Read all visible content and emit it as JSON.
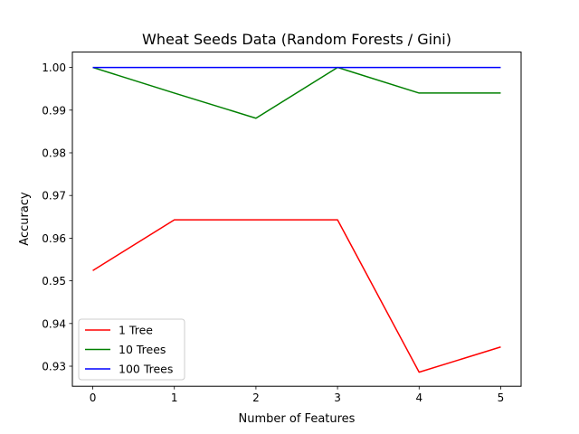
{
  "chart_data": {
    "type": "line",
    "title": "Wheat Seeds Data (Random Forests / Gini)",
    "xlabel": "Number of Features",
    "ylabel": "Accuracy",
    "x": [
      0,
      1,
      2,
      3,
      4,
      5
    ],
    "xlim": [
      -0.25,
      5.25
    ],
    "ylim": [
      0.9253,
      1.0036
    ],
    "xticks": [
      "0",
      "1",
      "2",
      "3",
      "4",
      "5"
    ],
    "yticks": [
      "0.93",
      "0.94",
      "0.95",
      "0.96",
      "0.97",
      "0.98",
      "0.99",
      "1.00"
    ],
    "grid": false,
    "legend_position": "lower-left",
    "series": [
      {
        "name": "1 Tree",
        "color": "#ff0000",
        "values": [
          0.9524,
          0.9643,
          0.9643,
          0.9643,
          0.9286,
          0.9345
        ]
      },
      {
        "name": "10 Trees",
        "color": "#008000",
        "values": [
          1.0,
          0.994,
          0.9881,
          1.0,
          0.994,
          0.994
        ]
      },
      {
        "name": "100 Trees",
        "color": "#0000ff",
        "values": [
          1.0,
          1.0,
          1.0,
          1.0,
          1.0,
          1.0
        ]
      }
    ]
  }
}
